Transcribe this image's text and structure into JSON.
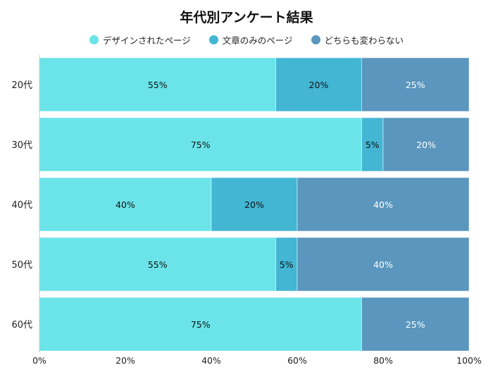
{
  "chart_data": {
    "type": "bar",
    "orientation": "horizontal",
    "stacked": true,
    "title": "年代別アンケート結果",
    "categories": [
      "20代",
      "30代",
      "40代",
      "50代",
      "60代"
    ],
    "series": [
      {
        "name": "デザインされたページ",
        "color": "#6ae4e8",
        "label_color": "#111111",
        "values": [
          55,
          75,
          40,
          55,
          75
        ]
      },
      {
        "name": "文章のみのページ",
        "color": "#43b6d4",
        "label_color": "#111111",
        "values": [
          20,
          5,
          20,
          5,
          0
        ]
      },
      {
        "name": "どちらも変わらない",
        "color": "#5a96bd",
        "label_color": "#ffffff",
        "values": [
          25,
          20,
          40,
          40,
          25
        ]
      }
    ],
    "xlim": [
      0,
      100
    ],
    "xticks": [
      "0%",
      "20%",
      "40%",
      "60%",
      "80%",
      "100%"
    ],
    "xtick_values": [
      0,
      20,
      40,
      60,
      80,
      100
    ],
    "value_suffix": "%",
    "legend_position": "top",
    "grid": false
  }
}
